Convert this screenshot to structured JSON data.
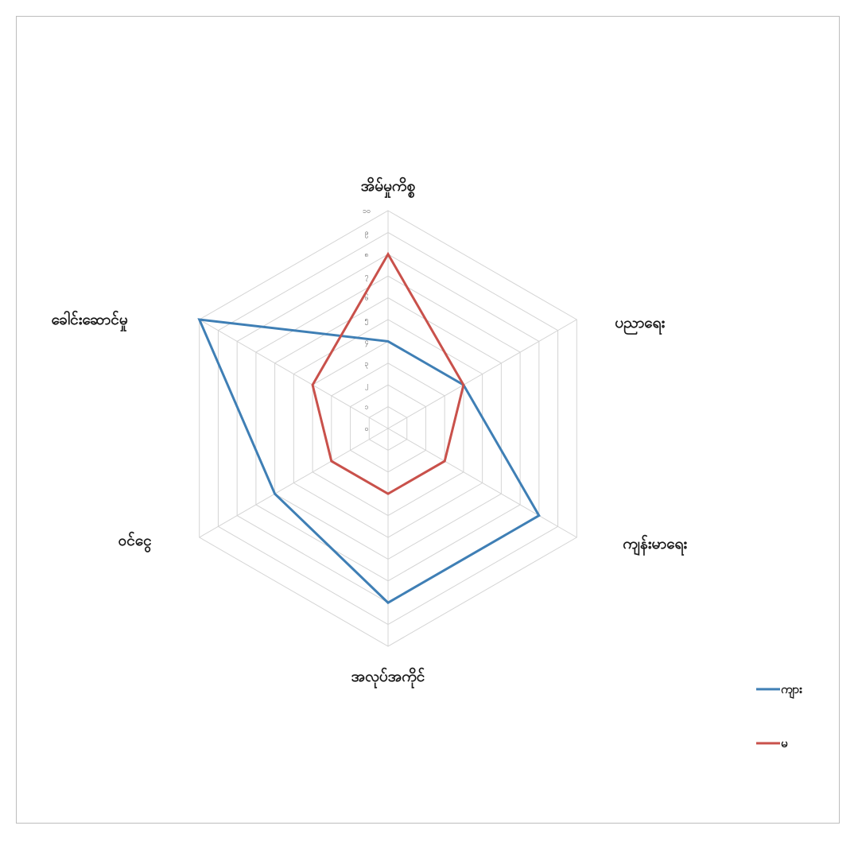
{
  "chart_data": {
    "type": "radar",
    "categories": [
      "အိမ်မှုကိစ္စ",
      "ပညာရေး",
      "ကျန်းမာရေး",
      "အလုပ်အကိုင်",
      "ဝင်ငွေ",
      "ခေါင်းဆောင်မှု"
    ],
    "rlim": [
      0,
      10
    ],
    "tick_labels": [
      "၀",
      "၁",
      "၂",
      "၃",
      "၄",
      "၅",
      "၆",
      "၇",
      "၈",
      "၉",
      "၁၀"
    ],
    "grid": true,
    "legend_position": "bottom-right",
    "series": [
      {
        "name": "ကျား",
        "color": "#3f7fb5",
        "values": [
          4,
          4,
          8,
          8,
          6,
          10
        ]
      },
      {
        "name": "မ",
        "color": "#c9514b",
        "values": [
          8,
          4,
          3,
          3,
          3,
          4
        ]
      }
    ]
  }
}
